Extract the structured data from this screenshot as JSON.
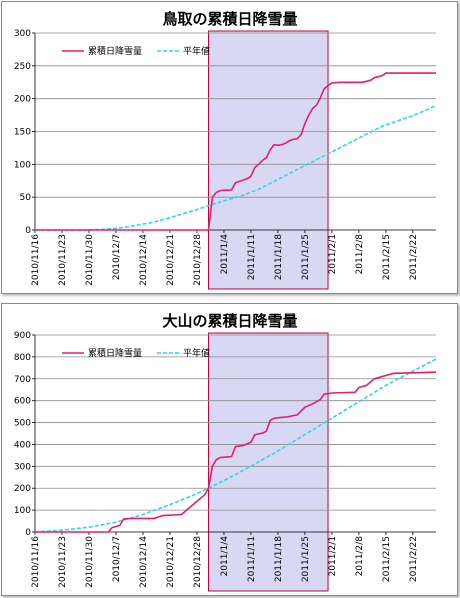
{
  "chart_data": [
    {
      "type": "line",
      "title": "鳥取の累積日降雪量",
      "ylim": [
        0,
        300
      ],
      "yticks": [
        0,
        50,
        100,
        150,
        200,
        250,
        300
      ],
      "xlim": [
        "2010-11-16",
        "2011-02-28"
      ],
      "xtick_labels": [
        "2010/11/16",
        "2010/11/23",
        "2010/11/30",
        "2010/12/7",
        "2010/12/14",
        "2010/12/21",
        "2010/12/28",
        "2011/1/4",
        "2011/1/11",
        "2011/1/18",
        "2011/1/25",
        "2011/2/1",
        "2011/2/8",
        "2011/2/15",
        "2011/2/22"
      ],
      "legend_position": "top-left",
      "highlight": {
        "start": "2010-12-31",
        "end": "2011-01-31",
        "color": "#d8d8f4",
        "border": "#c00040"
      },
      "series": [
        {
          "name": "累積日降雪量",
          "color": "#e0206e",
          "style": "solid",
          "points": [
            [
              "2010-11-16",
              0
            ],
            [
              "2010-12-31",
              0
            ],
            [
              "2011-01-01",
              50
            ],
            [
              "2011-01-02",
              57
            ],
            [
              "2011-01-03",
              60
            ],
            [
              "2011-01-06",
              61
            ],
            [
              "2011-01-07",
              72
            ],
            [
              "2011-01-08",
              74
            ],
            [
              "2011-01-10",
              78
            ],
            [
              "2011-01-11",
              82
            ],
            [
              "2011-01-12",
              95
            ],
            [
              "2011-01-13",
              100
            ],
            [
              "2011-01-14",
              106
            ],
            [
              "2011-01-15",
              110
            ],
            [
              "2011-01-16",
              122
            ],
            [
              "2011-01-17",
              130
            ],
            [
              "2011-01-18",
              129
            ],
            [
              "2011-01-19",
              130
            ],
            [
              "2011-01-20",
              132
            ],
            [
              "2011-01-21",
              136
            ],
            [
              "2011-01-22",
              138
            ],
            [
              "2011-01-23",
              139
            ],
            [
              "2011-01-24",
              145
            ],
            [
              "2011-01-25",
              162
            ],
            [
              "2011-01-26",
              175
            ],
            [
              "2011-01-27",
              185
            ],
            [
              "2011-01-28",
              190
            ],
            [
              "2011-01-29",
              201
            ],
            [
              "2011-01-30",
              215
            ],
            [
              "2011-01-31",
              220
            ],
            [
              "2011-02-01",
              224
            ],
            [
              "2011-02-03",
              225
            ],
            [
              "2011-02-09",
              225
            ],
            [
              "2011-02-11",
              228
            ],
            [
              "2011-02-12",
              232
            ],
            [
              "2011-02-14",
              235
            ],
            [
              "2011-02-15",
              239
            ],
            [
              "2011-02-28",
              239
            ]
          ]
        },
        {
          "name": "平年値",
          "color": "#33d6e6",
          "style": "dashed",
          "points": [
            [
              "2010-11-16",
              0
            ],
            [
              "2010-11-30",
              0
            ],
            [
              "2010-12-04",
              1
            ],
            [
              "2010-12-08",
              3
            ],
            [
              "2010-12-12",
              7
            ],
            [
              "2010-12-16",
              11
            ],
            [
              "2010-12-20",
              17
            ],
            [
              "2010-12-24",
              24
            ],
            [
              "2010-12-28",
              31
            ],
            [
              "2011-01-01",
              39
            ],
            [
              "2011-01-05",
              46
            ],
            [
              "2011-01-09",
              53
            ],
            [
              "2011-01-13",
              62
            ],
            [
              "2011-01-17",
              74
            ],
            [
              "2011-01-21",
              86
            ],
            [
              "2011-01-25",
              98
            ],
            [
              "2011-01-29",
              110
            ],
            [
              "2011-02-02",
              122
            ],
            [
              "2011-02-06",
              134
            ],
            [
              "2011-02-10",
              146
            ],
            [
              "2011-02-14",
              158
            ],
            [
              "2011-02-18",
              166
            ],
            [
              "2011-02-22",
              174
            ],
            [
              "2011-02-26",
              184
            ],
            [
              "2011-02-28",
              190
            ]
          ]
        }
      ]
    },
    {
      "type": "line",
      "title": "大山の累積日降雪量",
      "ylim": [
        0,
        900
      ],
      "yticks": [
        0,
        100,
        200,
        300,
        400,
        500,
        600,
        700,
        800,
        900
      ],
      "xlim": [
        "2010-11-16",
        "2011-02-28"
      ],
      "xtick_labels": [
        "2010/11/16",
        "2010/11/23",
        "2010/11/30",
        "2010/12/7",
        "2010/12/14",
        "2010/12/21",
        "2010/12/28",
        "2011/1/4",
        "2011/1/11",
        "2011/1/18",
        "2011/1/25",
        "2011/2/1",
        "2011/2/8",
        "2011/2/15",
        "2011/2/22"
      ],
      "legend_position": "top-left",
      "highlight": {
        "start": "2010-12-31",
        "end": "2011-01-31",
        "color": "#d8d8f4",
        "border": "#c00040"
      },
      "series": [
        {
          "name": "累積日降雪量",
          "color": "#e0206e",
          "style": "solid",
          "points": [
            [
              "2010-11-16",
              0
            ],
            [
              "2010-12-05",
              0
            ],
            [
              "2010-12-06",
              20
            ],
            [
              "2010-12-08",
              30
            ],
            [
              "2010-12-09",
              60
            ],
            [
              "2010-12-11",
              62
            ],
            [
              "2010-12-17",
              62
            ],
            [
              "2010-12-19",
              75
            ],
            [
              "2010-12-24",
              80
            ],
            [
              "2010-12-26",
              110
            ],
            [
              "2010-12-28",
              140
            ],
            [
              "2010-12-30",
              170
            ],
            [
              "2010-12-31",
              200
            ],
            [
              "2011-01-01",
              300
            ],
            [
              "2011-01-02",
              330
            ],
            [
              "2011-01-03",
              340
            ],
            [
              "2011-01-06",
              345
            ],
            [
              "2011-01-07",
              390
            ],
            [
              "2011-01-09",
              395
            ],
            [
              "2011-01-11",
              410
            ],
            [
              "2011-01-12",
              445
            ],
            [
              "2011-01-14",
              452
            ],
            [
              "2011-01-15",
              460
            ],
            [
              "2011-01-16",
              510
            ],
            [
              "2011-01-17",
              520
            ],
            [
              "2011-01-20",
              525
            ],
            [
              "2011-01-23",
              535
            ],
            [
              "2011-01-25",
              570
            ],
            [
              "2011-01-27",
              585
            ],
            [
              "2011-01-29",
              605
            ],
            [
              "2011-01-30",
              630
            ],
            [
              "2011-01-31",
              632
            ],
            [
              "2011-02-01",
              635
            ],
            [
              "2011-02-07",
              638
            ],
            [
              "2011-02-08",
              660
            ],
            [
              "2011-02-10",
              670
            ],
            [
              "2011-02-12",
              700
            ],
            [
              "2011-02-15",
              715
            ],
            [
              "2011-02-17",
              725
            ],
            [
              "2011-02-28",
              730
            ]
          ]
        },
        {
          "name": "平年値",
          "color": "#33d6e6",
          "style": "dashed",
          "points": [
            [
              "2010-11-16",
              0
            ],
            [
              "2010-11-23",
              8
            ],
            [
              "2010-11-30",
              22
            ],
            [
              "2010-12-07",
              45
            ],
            [
              "2010-12-14",
              80
            ],
            [
              "2010-12-21",
              125
            ],
            [
              "2010-12-28",
              175
            ],
            [
              "2011-01-04",
              235
            ],
            [
              "2011-01-11",
              300
            ],
            [
              "2011-01-18",
              370
            ],
            [
              "2011-01-25",
              445
            ],
            [
              "2011-02-01",
              520
            ],
            [
              "2011-02-08",
              595
            ],
            [
              "2011-02-15",
              670
            ],
            [
              "2011-02-22",
              735
            ],
            [
              "2011-02-28",
              790
            ]
          ]
        }
      ]
    }
  ]
}
